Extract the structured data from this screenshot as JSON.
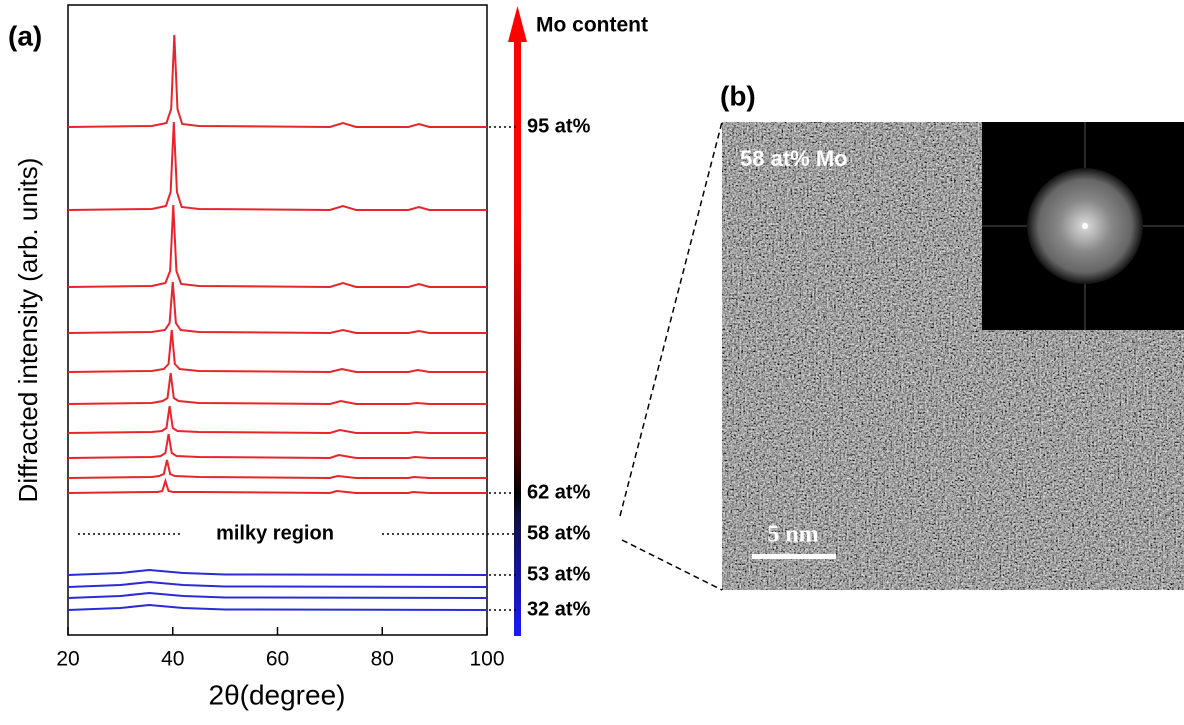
{
  "chart_data": {
    "type": "line",
    "panel_label": "(a)",
    "ylabel": "Diffracted intensity (arb. units)",
    "xlabel": "2θ(degree)",
    "xlim": [
      20,
      100
    ],
    "xticks": [
      20,
      40,
      60,
      80,
      100
    ],
    "ylim": [
      0,
      63
    ],
    "scale_title": "Mo content",
    "milky_region": {
      "label": "milky region",
      "content": "58 at%"
    },
    "series": [
      {
        "name": "95 at%",
        "color": "#e8252a",
        "x": [
          20,
          36,
          38.8,
          39.7,
          40.3,
          40.9,
          41.8,
          45,
          70,
          72.5,
          75,
          85,
          87,
          89,
          100
        ],
        "values": [
          50.8,
          50.9,
          51.2,
          52.6,
          60,
          52.6,
          51.1,
          50.9,
          50.8,
          51.2,
          50.8,
          50.8,
          51.1,
          50.8,
          50.8
        ]
      },
      {
        "color": "#e8252a",
        "x": [
          20,
          36,
          38.7,
          39.6,
          40.2,
          40.8,
          41.7,
          45,
          70,
          72.5,
          75,
          85,
          87,
          89,
          100
        ],
        "values": [
          42.5,
          42.6,
          42.9,
          44.3,
          51.3,
          44.3,
          42.8,
          42.6,
          42.5,
          42.9,
          42.5,
          42.5,
          42.8,
          42.5,
          42.5
        ]
      },
      {
        "color": "#e8252a",
        "x": [
          20,
          36,
          38.6,
          39.5,
          40.1,
          40.7,
          41.6,
          45,
          70,
          72.5,
          75,
          85,
          87,
          89,
          100
        ],
        "values": [
          34.8,
          34.9,
          35.2,
          36.4,
          43,
          36.4,
          35.1,
          34.9,
          34.8,
          35.2,
          34.8,
          34.8,
          35.1,
          34.8,
          34.8
        ]
      },
      {
        "color": "#e8252a",
        "x": [
          20,
          36,
          38.5,
          39.4,
          40,
          40.6,
          41.5,
          45,
          70,
          72.5,
          75,
          85,
          87,
          89,
          100
        ],
        "values": [
          30.2,
          30.3,
          30.5,
          31.2,
          35.3,
          31.2,
          30.5,
          30.3,
          30.2,
          30.5,
          30.2,
          30.2,
          30.4,
          30.2,
          30.2
        ]
      },
      {
        "color": "#e8252a",
        "x": [
          20,
          36,
          38.3,
          39.2,
          39.8,
          40.4,
          41.3,
          45,
          70,
          72.3,
          75,
          85,
          86.8,
          89,
          100
        ],
        "values": [
          26.3,
          26.4,
          26.6,
          27.1,
          30.5,
          27.1,
          26.6,
          26.4,
          26.3,
          26.6,
          26.3,
          26.3,
          26.5,
          26.3,
          26.3
        ]
      },
      {
        "color": "#e8252a",
        "x": [
          20,
          36,
          38.1,
          39,
          39.6,
          40.2,
          41.1,
          45,
          70,
          72.1,
          75,
          85,
          86.6,
          89,
          100
        ],
        "values": [
          23.1,
          23.2,
          23.4,
          23.7,
          26.2,
          23.7,
          23.4,
          23.2,
          23.1,
          23.4,
          23.1,
          23.1,
          23.2,
          23.1,
          23.1
        ]
      },
      {
        "color": "#e8252a",
        "x": [
          20,
          36,
          37.9,
          38.8,
          39.4,
          40,
          40.9,
          45,
          70,
          71.9,
          75,
          85,
          86.4,
          89,
          100
        ],
        "values": [
          20.2,
          20.3,
          20.4,
          20.7,
          22.9,
          20.7,
          20.4,
          20.3,
          20.2,
          20.5,
          20.2,
          20.2,
          20.3,
          20.2,
          20.2
        ]
      },
      {
        "color": "#e8252a",
        "x": [
          20,
          36,
          37.7,
          38.6,
          39.2,
          39.8,
          40.7,
          45,
          70,
          71.7,
          75,
          85,
          86.2,
          89,
          100
        ],
        "values": [
          17.7,
          17.8,
          17.9,
          18.2,
          20.1,
          18.2,
          17.9,
          17.8,
          17.7,
          18,
          17.7,
          17.7,
          17.8,
          17.7,
          17.7
        ]
      },
      {
        "color": "#e8252a",
        "x": [
          20,
          36,
          37.4,
          38.3,
          38.9,
          39.5,
          40.4,
          45,
          70,
          71.5,
          75,
          85,
          86,
          89,
          100
        ],
        "values": [
          15.7,
          15.8,
          15.9,
          16.1,
          17.5,
          16.1,
          15.9,
          15.8,
          15.7,
          15.9,
          15.7,
          15.7,
          15.8,
          15.7,
          15.7
        ]
      },
      {
        "name": "62 at%",
        "color": "#e8252a",
        "x": [
          20,
          36,
          37.1,
          38,
          38.6,
          39.2,
          40.1,
          45,
          70,
          71.3,
          75,
          85,
          85.8,
          89,
          100
        ],
        "values": [
          14.2,
          14.3,
          14.3,
          14.4,
          15.4,
          14.4,
          14.3,
          14.3,
          14.2,
          14.4,
          14.2,
          14.2,
          14.3,
          14.2,
          14.2
        ]
      },
      {
        "name": "53 at%",
        "color": "#2a2ad8",
        "x": [
          20,
          30,
          35.5,
          42,
          50,
          100
        ],
        "values": [
          6,
          6.2,
          6.5,
          6.2,
          6.05,
          6
        ]
      },
      {
        "color": "#2a2ad8",
        "x": [
          20,
          30,
          35.5,
          42,
          50,
          100
        ],
        "values": [
          4.8,
          5,
          5.3,
          5,
          4.85,
          4.8
        ]
      },
      {
        "color": "#2a2ad8",
        "x": [
          20,
          30,
          35.5,
          42,
          50,
          100
        ],
        "values": [
          3.7,
          3.9,
          4.2,
          3.9,
          3.75,
          3.7
        ]
      },
      {
        "name": "32 at%",
        "color": "#2a2ad8",
        "x": [
          20,
          30,
          35.5,
          42,
          50,
          100
        ],
        "values": [
          2.5,
          2.7,
          3,
          2.7,
          2.55,
          2.5
        ]
      }
    ]
  },
  "panel_b": {
    "panel_label": "(b)",
    "caption": "58 at% Mo",
    "scale_bar": "5 nm"
  }
}
